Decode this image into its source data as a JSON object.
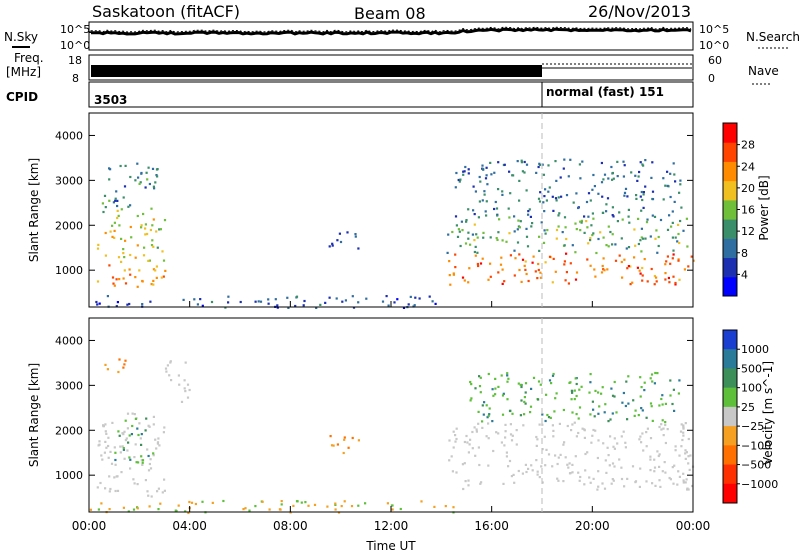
{
  "header": {
    "station": "Saskatoon (fitACF)",
    "beam": "Beam 08",
    "date": "26/Nov/2013"
  },
  "status_panels": {
    "nsky_label": "N.Sky",
    "nsearch_label": "N.Search",
    "freq_label_1": "Freq.",
    "freq_label_2": "[MHz]",
    "nave_label": "Nave",
    "cpid_label": "CPID",
    "noise_ticks": [
      "10^5",
      "10^0"
    ],
    "freq_ticks": [
      "18",
      "8"
    ],
    "nave_ticks": [
      "60",
      "0"
    ],
    "cpid_left": "3503",
    "cpid_right": "normal (fast) 151"
  },
  "chart_data": [
    {
      "type": "heatmap",
      "name": "power",
      "ylabel": "Slant Range [km]",
      "y_ticks": [
        "1000",
        "2000",
        "3000",
        "4000"
      ],
      "y_values": [
        1000,
        2000,
        3000,
        4000
      ],
      "ylim": [
        180,
        4500
      ],
      "xlim_hours": [
        0,
        24
      ],
      "colorbar_label": "Power [dB]",
      "colorbar_ticks": [
        "4",
        "8",
        "12",
        "16",
        "20",
        "24",
        "28"
      ],
      "colorbar_values": [
        4,
        8,
        12,
        16,
        20,
        24,
        28
      ],
      "colorbar_range": [
        0,
        32
      ],
      "colors": [
        "#0000ff",
        "#1c2fb0",
        "#2f6ea0",
        "#3a8f6a",
        "#6fbf3a",
        "#f0c020",
        "#ff8c00",
        "#ff4400",
        "#ff0000"
      ],
      "regions": [
        {
          "t0": 0.3,
          "t1": 3.0,
          "r0": 600,
          "r1": 1200,
          "level": 24
        },
        {
          "t0": 0.3,
          "t1": 3.0,
          "r0": 1200,
          "r1": 2400,
          "level": 18
        },
        {
          "t0": 0.5,
          "t1": 2.7,
          "r0": 2400,
          "r1": 3500,
          "level": 10
        },
        {
          "t0": 9.5,
          "t1": 11.0,
          "r0": 1500,
          "r1": 1900,
          "level": 8
        },
        {
          "t0": 14.2,
          "t1": 24.0,
          "r0": 700,
          "r1": 1400,
          "level": 26
        },
        {
          "t0": 14.2,
          "t1": 24.0,
          "r0": 1400,
          "r1": 2200,
          "level": 14
        },
        {
          "t0": 14.5,
          "t1": 23.5,
          "r0": 2200,
          "r1": 3500,
          "level": 9
        },
        {
          "t0": 0.0,
          "t1": 14.5,
          "r0": 180,
          "r1": 450,
          "level": 6
        }
      ]
    },
    {
      "type": "heatmap",
      "name": "velocity",
      "ylabel": "Slant Range [km]",
      "y_ticks": [
        "1000",
        "2000",
        "3000",
        "4000"
      ],
      "y_values": [
        1000,
        2000,
        3000,
        4000
      ],
      "ylim": [
        180,
        4500
      ],
      "xlim_hours": [
        0,
        24
      ],
      "xlabel": "Time UT",
      "x_ticks": [
        "00:00",
        "04:00",
        "08:00",
        "12:00",
        "16:00",
        "20:00",
        "00:00"
      ],
      "x_values": [
        0,
        4,
        8,
        12,
        16,
        20,
        24
      ],
      "colorbar_label": "Velocity [m s^-1]",
      "colorbar_ticks": [
        "1000",
        "500",
        "100",
        "25",
        "−25",
        "−100",
        "−500",
        "−1000"
      ],
      "colorbar_values": [
        1000,
        500,
        100,
        25,
        -25,
        -100,
        -500,
        -1000
      ],
      "colors": [
        "#1a3fd0",
        "#2a7a9a",
        "#3d8f5a",
        "#5ec03a",
        "#c8c8c8",
        "#f5a020",
        "#ff7000",
        "#ff3000",
        "#ff0000"
      ],
      "regions": [
        {
          "t0": 0.3,
          "t1": 3.0,
          "r0": 500,
          "r1": 2400,
          "level": "ground"
        },
        {
          "t0": 1.0,
          "t1": 2.6,
          "r0": 1300,
          "r1": 2300,
          "level": "positive"
        },
        {
          "t0": 0.5,
          "t1": 1.5,
          "r0": 3200,
          "r1": 3600,
          "level": "negative"
        },
        {
          "t0": 3.0,
          "t1": 4.0,
          "r0": 2600,
          "r1": 3600,
          "level": "ground"
        },
        {
          "t0": 9.5,
          "t1": 11.0,
          "r0": 1500,
          "r1": 1900,
          "level": "negative"
        },
        {
          "t0": 14.2,
          "t1": 24.0,
          "r0": 700,
          "r1": 2200,
          "level": "ground"
        },
        {
          "t0": 15.0,
          "t1": 23.5,
          "r0": 2200,
          "r1": 3300,
          "level": "positive"
        },
        {
          "t0": 0.0,
          "t1": 14.5,
          "r0": 180,
          "r1": 450,
          "level": "negative-small"
        }
      ]
    }
  ]
}
